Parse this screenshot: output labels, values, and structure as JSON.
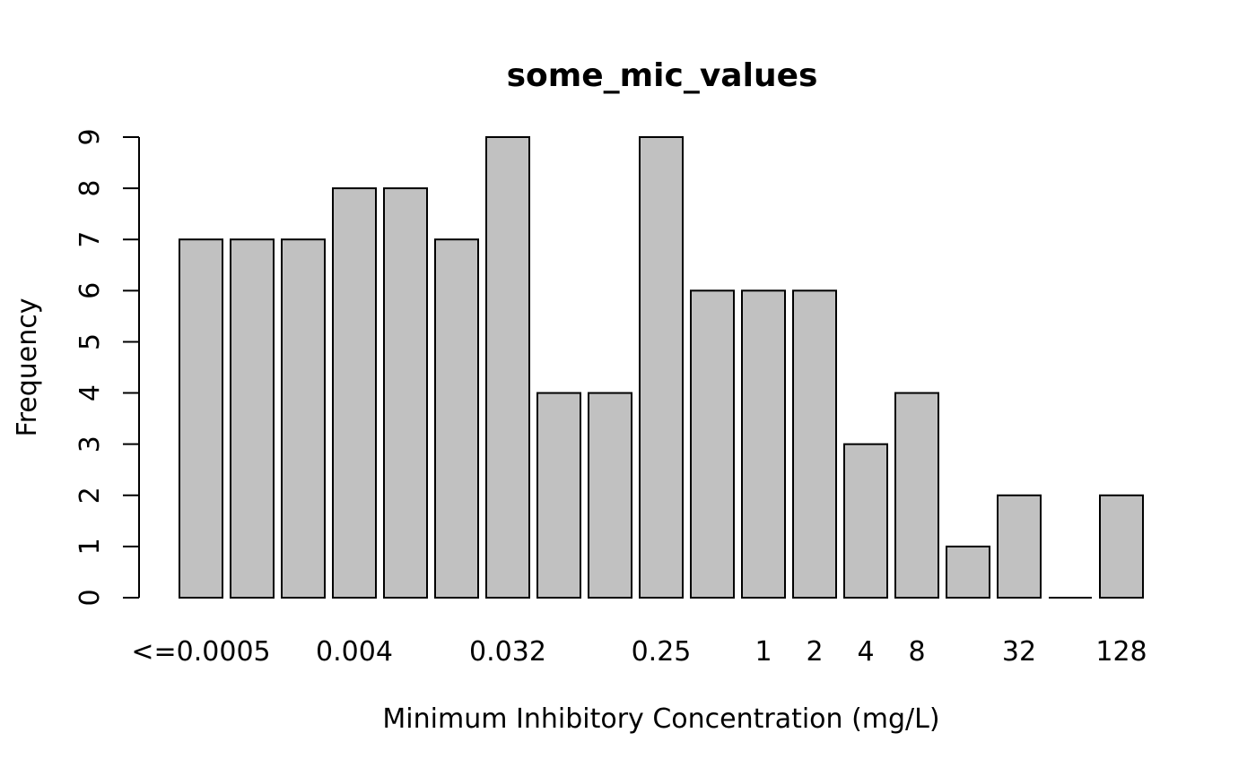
{
  "chart_data": {
    "type": "bar",
    "title": "some_mic_values",
    "xlabel": "Minimum Inhibitory Concentration (mg/L)",
    "ylabel": "Frequency",
    "values": [
      7,
      7,
      7,
      8,
      8,
      7,
      9,
      4,
      4,
      9,
      6,
      6,
      6,
      3,
      4,
      1,
      2,
      0,
      2
    ],
    "x_ticks": [
      {
        "bar_index": 0,
        "label": "<=0.0005"
      },
      {
        "bar_index": 3,
        "label": "0.004"
      },
      {
        "bar_index": 6,
        "label": "0.032"
      },
      {
        "bar_index": 9,
        "label": "0.25"
      },
      {
        "bar_index": 11,
        "label": "1"
      },
      {
        "bar_index": 12,
        "label": "2"
      },
      {
        "bar_index": 13,
        "label": "4"
      },
      {
        "bar_index": 14,
        "label": "8"
      },
      {
        "bar_index": 16,
        "label": "32"
      },
      {
        "bar_index": 18,
        "label": "128"
      }
    ],
    "y_ticks": [
      0,
      1,
      2,
      3,
      4,
      5,
      6,
      7,
      8,
      9
    ],
    "ylim": [
      0,
      9
    ],
    "grid": false,
    "legend": "none",
    "colors": {
      "bar_fill": "#c1c1c1",
      "bar_stroke": "#000000",
      "axis": "#000000",
      "background": "#ffffff"
    }
  }
}
